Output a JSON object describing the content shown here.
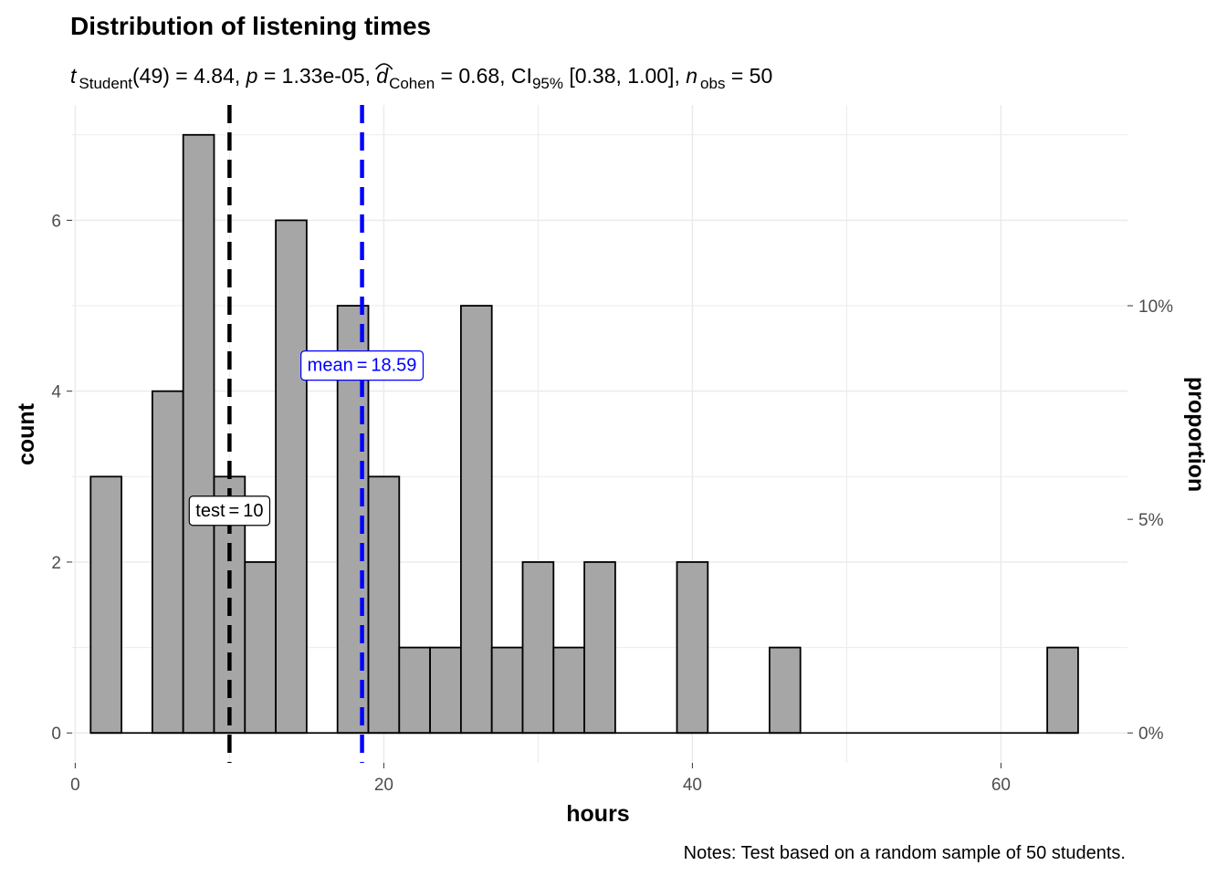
{
  "chart_data": {
    "type": "bar",
    "title": "Distribution of listening times",
    "subtitle": {
      "t_symbol": "t",
      "t_sub": "Student",
      "df_text": "(49) = 4.84, ",
      "p_symbol": "p",
      "p_text": " = 1.33e-05, ",
      "d_symbol": "d",
      "d_sub": "Cohen",
      "d_text": " = 0.68, CI",
      "ci_sub": "95%",
      "ci_text": " [0.38, 1.00], ",
      "n_symbol": "n",
      "n_sub": "obs",
      "n_text": " = 50"
    },
    "xlabel": "hours",
    "ylabel": "count",
    "y2label": "proportion",
    "caption": "Notes: Test based on a random sample of 50 students.",
    "bin_width": 2,
    "bins": [
      {
        "x_start": 1,
        "x_end": 3,
        "count": 3
      },
      {
        "x_start": 3,
        "x_end": 5,
        "count": 0
      },
      {
        "x_start": 5,
        "x_end": 7,
        "count": 4
      },
      {
        "x_start": 7,
        "x_end": 9,
        "count": 7
      },
      {
        "x_start": 9,
        "x_end": 11,
        "count": 3
      },
      {
        "x_start": 11,
        "x_end": 13,
        "count": 2
      },
      {
        "x_start": 13,
        "x_end": 15,
        "count": 6
      },
      {
        "x_start": 15,
        "x_end": 17,
        "count": 0
      },
      {
        "x_start": 17,
        "x_end": 19,
        "count": 5
      },
      {
        "x_start": 19,
        "x_end": 21,
        "count": 3
      },
      {
        "x_start": 21,
        "x_end": 23,
        "count": 1
      },
      {
        "x_start": 23,
        "x_end": 25,
        "count": 1
      },
      {
        "x_start": 25,
        "x_end": 27,
        "count": 5
      },
      {
        "x_start": 27,
        "x_end": 29,
        "count": 1
      },
      {
        "x_start": 29,
        "x_end": 31,
        "count": 2
      },
      {
        "x_start": 31,
        "x_end": 33,
        "count": 1
      },
      {
        "x_start": 33,
        "x_end": 35,
        "count": 2
      },
      {
        "x_start": 35,
        "x_end": 37,
        "count": 0
      },
      {
        "x_start": 37,
        "x_end": 39,
        "count": 0
      },
      {
        "x_start": 39,
        "x_end": 41,
        "count": 2
      },
      {
        "x_start": 41,
        "x_end": 43,
        "count": 0
      },
      {
        "x_start": 43,
        "x_end": 45,
        "count": 0
      },
      {
        "x_start": 45,
        "x_end": 47,
        "count": 1
      },
      {
        "x_start": 47,
        "x_end": 49,
        "count": 0
      },
      {
        "x_start": 49,
        "x_end": 51,
        "count": 0
      },
      {
        "x_start": 51,
        "x_end": 53,
        "count": 0
      },
      {
        "x_start": 53,
        "x_end": 55,
        "count": 0
      },
      {
        "x_start": 55,
        "x_end": 57,
        "count": 0
      },
      {
        "x_start": 57,
        "x_end": 59,
        "count": 0
      },
      {
        "x_start": 59,
        "x_end": 61,
        "count": 0
      },
      {
        "x_start": 61,
        "x_end": 63,
        "count": 0
      },
      {
        "x_start": 63,
        "x_end": 65,
        "count": 1
      }
    ],
    "xlim": [
      -0.2,
      68.2
    ],
    "ylim": [
      -0.35,
      7.35
    ],
    "x_ticks": [
      0,
      20,
      40,
      60
    ],
    "x_tick_labels": [
      "0",
      "20",
      "40",
      "60"
    ],
    "y_ticks": [
      0,
      2,
      4,
      6
    ],
    "y_tick_labels": [
      "0",
      "2",
      "4",
      "6"
    ],
    "y2_ticks": [
      0,
      0.05,
      0.1
    ],
    "y2_tick_labels": [
      "0%",
      "5%",
      "10%"
    ],
    "n": 50,
    "grid": true,
    "vlines": [
      {
        "value": 10,
        "label": "test",
        "value_text": "10",
        "color": "#000000"
      },
      {
        "value": 18.59,
        "label": "mean",
        "value_text": "18.59",
        "color": "#0000ff"
      }
    ],
    "colors": {
      "bar_fill": "#a6a6a6",
      "bar_stroke": "#000000",
      "grid": "#ebebeb",
      "tick_text": "#4d4d4d"
    }
  }
}
